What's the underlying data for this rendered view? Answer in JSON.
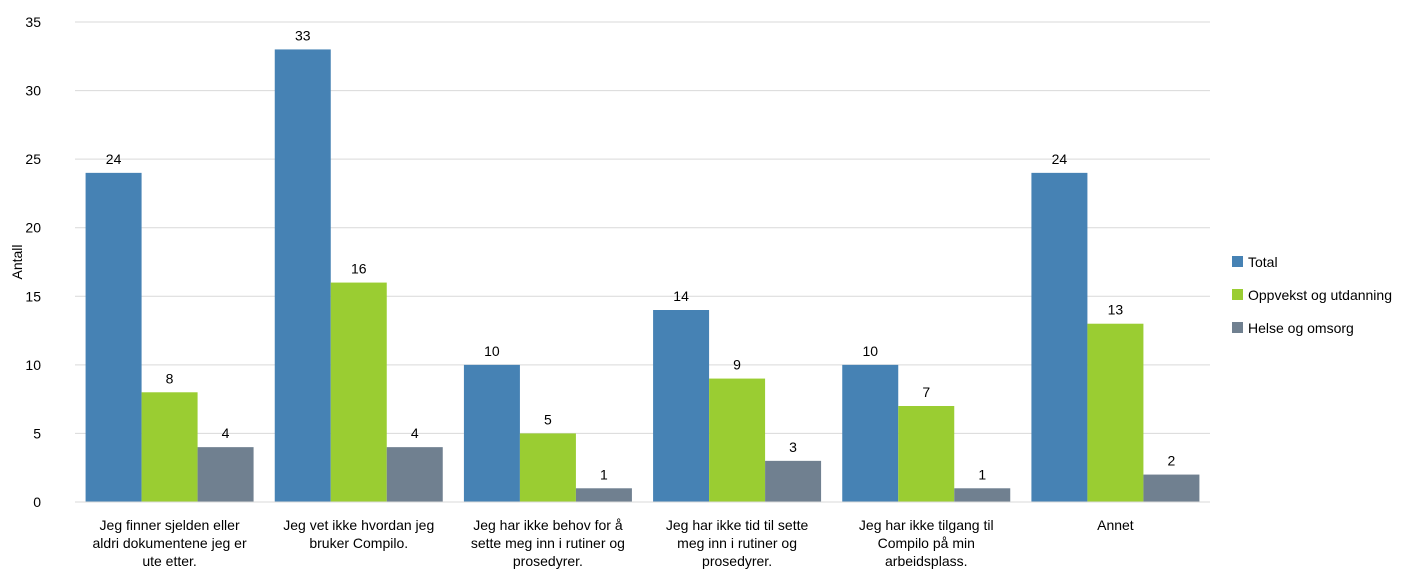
{
  "chart_data": {
    "type": "bar",
    "title": "",
    "xlabel": "",
    "ylabel": "Antall",
    "ylim": [
      0,
      35
    ],
    "yticks": [
      0,
      5,
      10,
      15,
      20,
      25,
      30,
      35
    ],
    "grid": true,
    "legend_position": "right",
    "categories": [
      [
        "Jeg finner sjelden eller",
        "aldri dokumentene jeg er",
        "ute etter."
      ],
      [
        "Jeg vet ikke hvordan jeg",
        "bruker Compilo."
      ],
      [
        "Jeg har ikke behov for å",
        "sette meg inn i rutiner og",
        "prosedyrer."
      ],
      [
        "Jeg har ikke tid til sette",
        "meg inn i rutiner og",
        "prosedyrer."
      ],
      [
        "Jeg har ikke tilgang til",
        "Compilo på min",
        "arbeidsplass."
      ],
      [
        "Annet"
      ]
    ],
    "series": [
      {
        "name": "Total",
        "color": "#4682B4",
        "values": [
          24,
          33,
          10,
          14,
          10,
          24
        ]
      },
      {
        "name": "Oppvekst og utdanning",
        "color": "#9ACD32",
        "values": [
          8,
          16,
          5,
          9,
          7,
          13
        ]
      },
      {
        "name": "Helse og omsorg",
        "color": "#708090",
        "values": [
          4,
          4,
          1,
          3,
          1,
          2
        ]
      }
    ]
  }
}
